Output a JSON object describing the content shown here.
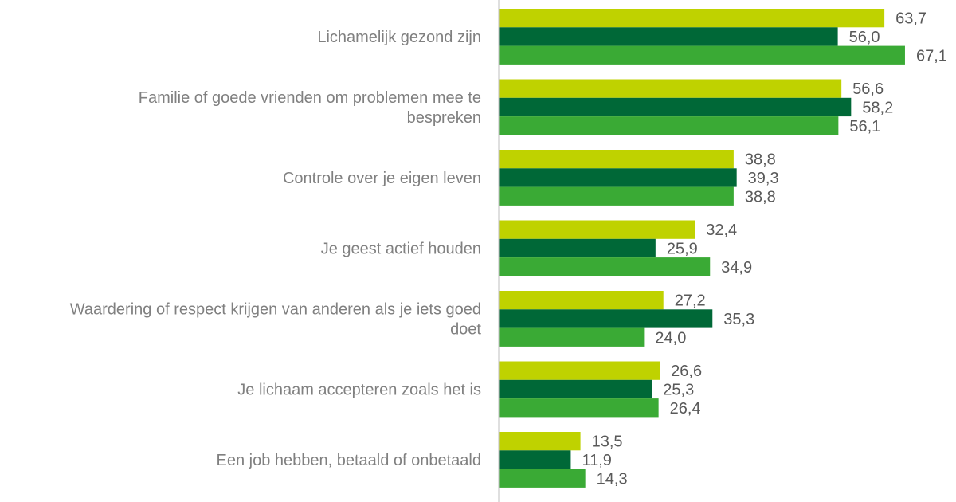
{
  "chart_data": {
    "type": "bar",
    "orientation": "horizontal",
    "title": "",
    "xlabel": "",
    "ylabel": "",
    "categories": [
      "Lichamelijk gezond zijn",
      "Familie of goede vrienden om problemen mee te bespreken",
      "Controle over je eigen leven",
      "Je geest actief houden",
      "Waardering of respect krijgen van anderen als je iets goed doet",
      "Je lichaam accepteren zoals het is",
      "Een job hebben, betaald of onbetaald"
    ],
    "category_lines": [
      [
        "Lichamelijk gezond zijn"
      ],
      [
        "Familie of goede vrienden om problemen mee te",
        "bespreken"
      ],
      [
        "Controle over je eigen leven"
      ],
      [
        "Je geest actief houden"
      ],
      [
        "Waardering of respect krijgen van anderen als je iets goed",
        "doet"
      ],
      [
        "Je lichaam accepteren zoals het is"
      ],
      [
        "Een job hebben, betaald of onbetaald"
      ]
    ],
    "series": [
      {
        "name": "Series 1",
        "color": "#bfd200",
        "values": [
          63.7,
          56.6,
          38.8,
          32.4,
          27.2,
          26.6,
          13.5
        ],
        "labels": [
          "63,7",
          "56,6",
          "38,8",
          "32,4",
          "27,2",
          "26,6",
          "13,5"
        ]
      },
      {
        "name": "Series 2",
        "color": "#006837",
        "values": [
          56.0,
          58.2,
          39.3,
          25.9,
          35.3,
          25.3,
          11.9
        ],
        "labels": [
          "56,0",
          "58,2",
          "39,3",
          "25,9",
          "35,3",
          "25,3",
          "11,9"
        ]
      },
      {
        "name": "Series 3",
        "color": "#3aaa35",
        "values": [
          67.1,
          56.1,
          38.8,
          34.9,
          24.0,
          26.4,
          14.3
        ],
        "labels": [
          "67,1",
          "56,1",
          "38,8",
          "34,9",
          "24,0",
          "26,4",
          "14,3"
        ]
      }
    ],
    "xlim": [
      0,
      70
    ],
    "grid": false,
    "legend": "none"
  }
}
